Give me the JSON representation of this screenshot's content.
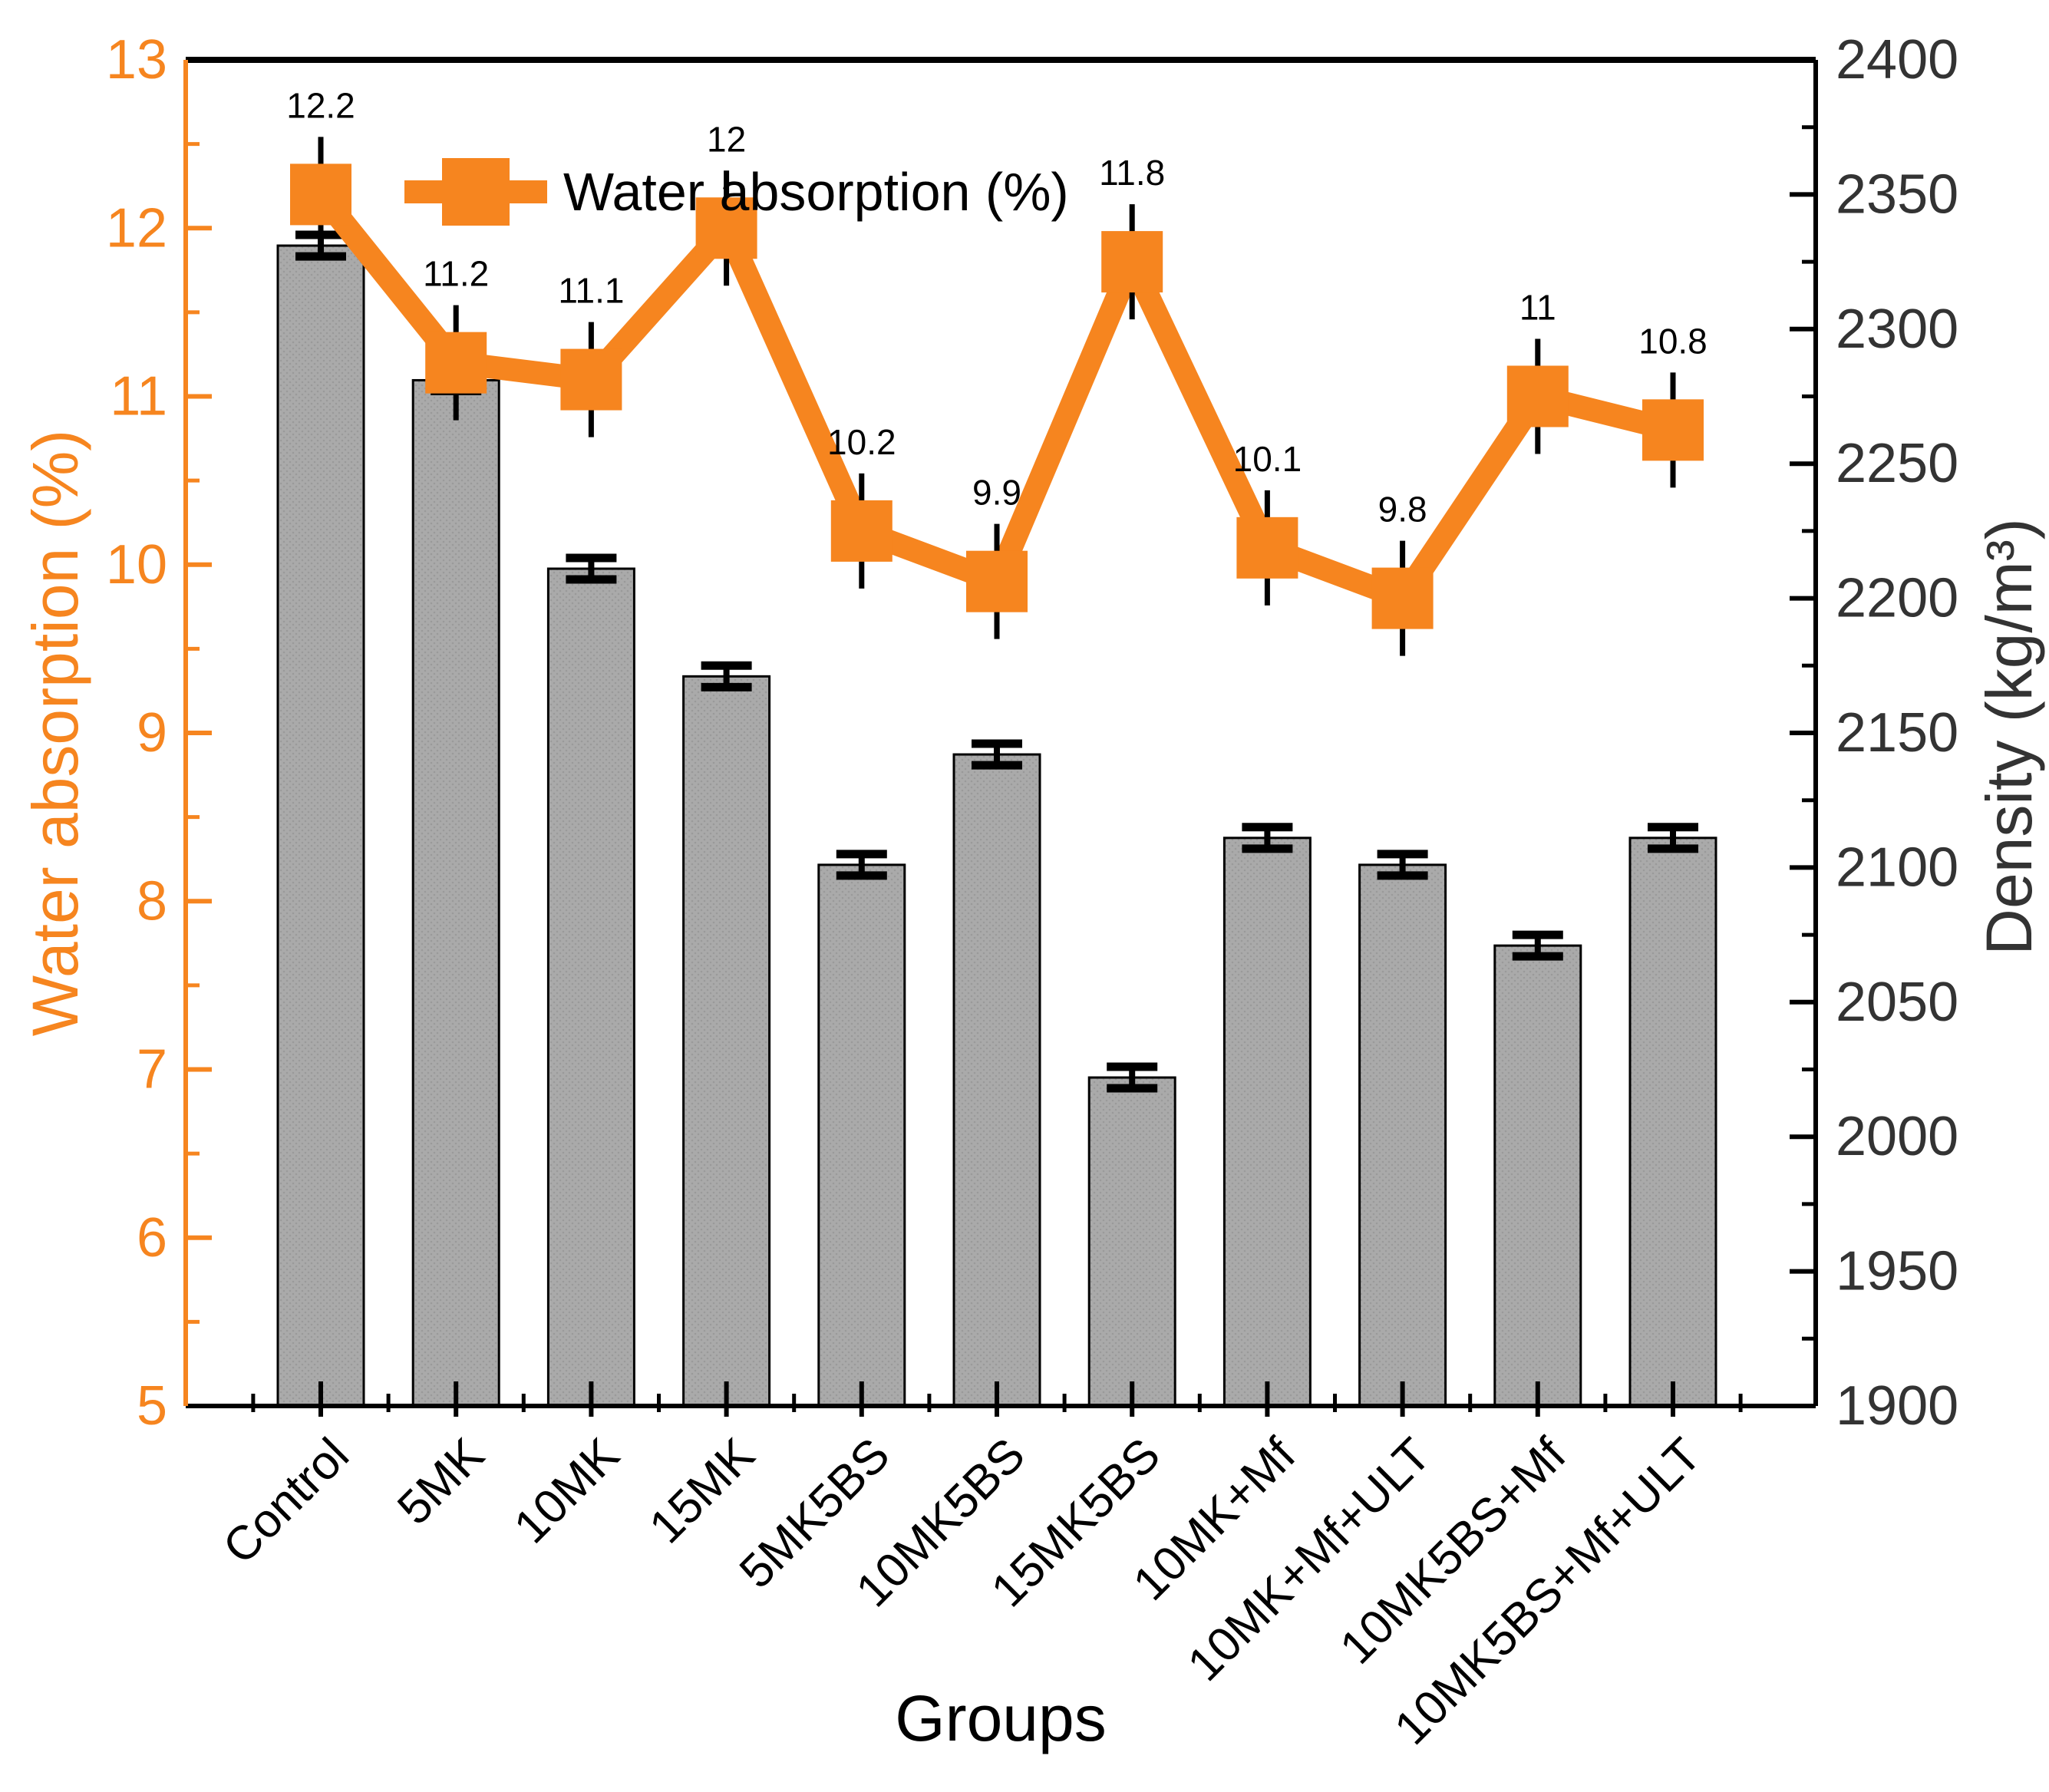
{
  "legend": {
    "label": "Water absorption (%)"
  },
  "axes": {
    "left": {
      "title": "Water absorption (%)",
      "color": "#F6851F"
    },
    "right": {
      "title": "Density (kg/m³)",
      "color": "#333333"
    },
    "bottom": {
      "title": "Groups"
    }
  },
  "chart_data": {
    "type": "combo-bar-line",
    "categories": [
      "Control",
      "5MK",
      "10MK",
      "15MK",
      "5MK5BS",
      "10MK5BS",
      "15MK5BS",
      "10MK+Mf",
      "10MK+Mf+ULT",
      "10MK5BS+Mf",
      "10MK5BS+Mf+ULT"
    ],
    "series": [
      {
        "name": "Density",
        "type": "bar",
        "axis": "right",
        "color": "#A9A9A9",
        "values": [
          2331,
          2281,
          2211,
          2171,
          2101,
          2142,
          2022,
          2111,
          2101,
          2071,
          2111
        ],
        "error": 4
      },
      {
        "name": "Water absorption (%)",
        "type": "line",
        "axis": "left",
        "color": "#F6851F",
        "values": [
          12.2,
          11.2,
          11.1,
          12.0,
          10.2,
          9.9,
          11.8,
          10.1,
          9.8,
          11.0,
          10.8
        ],
        "point_labels": [
          "12.2",
          "11.2",
          "11.1",
          "12",
          "10.2",
          "9.9",
          "11.8",
          "10.1",
          "9.8",
          "11",
          "10.8"
        ],
        "error": 0.15
      }
    ],
    "left_axis": {
      "label": "Water absorption (%)",
      "min": 5,
      "max": 13,
      "major_step": 1,
      "minor_step": 0.5,
      "tick_labels": [
        "5",
        "6",
        "7",
        "8",
        "9",
        "10",
        "11",
        "12",
        "13"
      ]
    },
    "right_axis": {
      "label": "Density (kg/m³)",
      "min": 1900,
      "max": 2400,
      "major_step": 50,
      "minor_step": 25,
      "tick_labels": [
        "1900",
        "1950",
        "2000",
        "2050",
        "2100",
        "2150",
        "2200",
        "2250",
        "2300",
        "2350",
        "2400"
      ]
    },
    "x_axis": {
      "label": "Groups"
    },
    "legend_position": "top-left-inside",
    "grid": false
  }
}
